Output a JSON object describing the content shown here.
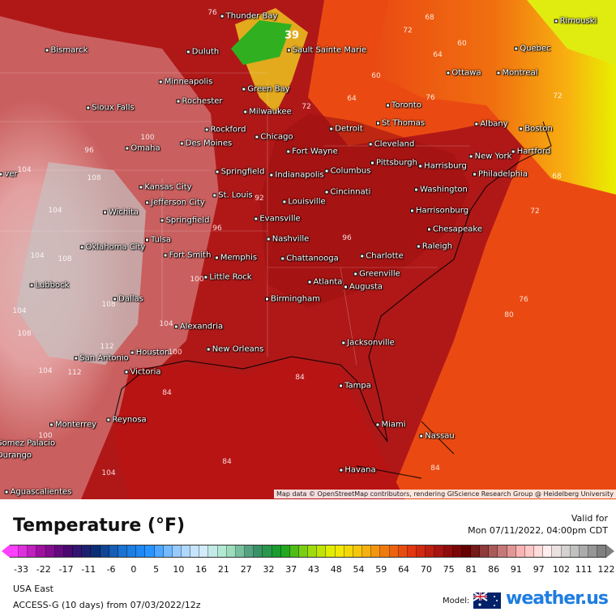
{
  "map": {
    "cities": [
      {
        "name": "Thunder Bay",
        "p": [
          307,
          20
        ]
      },
      {
        "name": "Bismarck",
        "p": [
          82,
          62
        ]
      },
      {
        "name": "Duluth",
        "p": [
          250,
          64
        ]
      },
      {
        "name": "Sault Sainte Marie",
        "p": [
          403,
          62
        ]
      },
      {
        "name": "Rimouski",
        "p": [
          710,
          26
        ]
      },
      {
        "name": "Quebec",
        "p": [
          657,
          60
        ]
      },
      {
        "name": "Ottawa",
        "p": [
          572,
          90
        ]
      },
      {
        "name": "Montreal",
        "p": [
          638,
          90
        ]
      },
      {
        "name": "Minneapolis",
        "p": [
          229,
          101
        ]
      },
      {
        "name": "Green Bay",
        "p": [
          328,
          110
        ]
      },
      {
        "name": "Rochester",
        "p": [
          246,
          125
        ]
      },
      {
        "name": "Toronto",
        "p": [
          498,
          130
        ]
      },
      {
        "name": "Sioux Falls",
        "p": [
          136,
          133
        ]
      },
      {
        "name": "Milwaukee",
        "p": [
          330,
          138
        ]
      },
      {
        "name": "Albany",
        "p": [
          606,
          153
        ]
      },
      {
        "name": "Boston",
        "p": [
          661,
          159
        ]
      },
      {
        "name": "St Thomas",
        "p": [
          494,
          152
        ]
      },
      {
        "name": "Rockford",
        "p": [
          278,
          160
        ]
      },
      {
        "name": "Chicago",
        "p": [
          338,
          169
        ]
      },
      {
        "name": "Detroit",
        "p": [
          427,
          159
        ]
      },
      {
        "name": "Omaha",
        "p": [
          176,
          183
        ]
      },
      {
        "name": "Des Moines",
        "p": [
          254,
          177
        ]
      },
      {
        "name": "Fort Wayne",
        "p": [
          385,
          187
        ]
      },
      {
        "name": "Cleveland",
        "p": [
          483,
          178
        ]
      },
      {
        "name": "Hartford",
        "p": [
          655,
          187
        ]
      },
      {
        "name": "New York",
        "p": [
          605,
          193
        ]
      },
      {
        "name": "Springfield",
        "p": [
          296,
          212
        ]
      },
      {
        "name": "Indianapolis",
        "p": [
          366,
          216
        ]
      },
      {
        "name": "Columbus",
        "p": [
          429,
          211
        ]
      },
      {
        "name": "Pittsburgh",
        "p": [
          486,
          201
        ]
      },
      {
        "name": "Harrisburg",
        "p": [
          546,
          205
        ]
      },
      {
        "name": "Philadelphia",
        "p": [
          617,
          215
        ]
      },
      {
        "name": "Kansas City",
        "p": [
          204,
          231
        ]
      },
      {
        "name": "Jefferson City",
        "p": [
          216,
          250
        ]
      },
      {
        "name": "St. Louis",
        "p": [
          287,
          241
        ]
      },
      {
        "name": "Cincinnati",
        "p": [
          429,
          237
        ]
      },
      {
        "name": "Washington",
        "p": [
          544,
          234
        ]
      },
      {
        "name": "Wichita",
        "p": [
          149,
          262
        ]
      },
      {
        "name": "Springfield",
        "p": [
          228,
          272
        ]
      },
      {
        "name": "Louisville",
        "p": [
          375,
          249
        ]
      },
      {
        "name": "Evansville",
        "p": [
          342,
          270
        ]
      },
      {
        "name": "Harrisonburg",
        "p": [
          542,
          260
        ]
      },
      {
        "name": "Oklahoma City",
        "p": [
          139,
          305
        ]
      },
      {
        "name": "Tulsa",
        "p": [
          195,
          296
        ]
      },
      {
        "name": "Fort Smith",
        "p": [
          231,
          315
        ]
      },
      {
        "name": "Memphis",
        "p": [
          291,
          318
        ]
      },
      {
        "name": "Nashville",
        "p": [
          355,
          295
        ]
      },
      {
        "name": "Chesapeake",
        "p": [
          561,
          283
        ]
      },
      {
        "name": "Raleigh",
        "p": [
          536,
          304
        ]
      },
      {
        "name": "Chattanooga",
        "p": [
          382,
          319
        ]
      },
      {
        "name": "Charlotte",
        "p": [
          471,
          316
        ]
      },
      {
        "name": "Greenville",
        "p": [
          465,
          338
        ]
      },
      {
        "name": "Little Rock",
        "p": [
          281,
          342
        ]
      },
      {
        "name": "Lubbock",
        "p": [
          61,
          352
        ]
      },
      {
        "name": "Atlanta",
        "p": [
          401,
          348
        ]
      },
      {
        "name": "Augusta",
        "p": [
          448,
          354
        ]
      },
      {
        "name": "Birmingham",
        "p": [
          361,
          369
        ]
      },
      {
        "name": "Dallas",
        "p": [
          158,
          369
        ]
      },
      {
        "name": "Alexandria",
        "p": [
          245,
          403
        ]
      },
      {
        "name": "New Orleans",
        "p": [
          290,
          431
        ]
      },
      {
        "name": "Jacksonville",
        "p": [
          454,
          423
        ]
      },
      {
        "name": "San Antonio",
        "p": [
          125,
          442
        ]
      },
      {
        "name": "Houston",
        "p": [
          185,
          435
        ]
      },
      {
        "name": "Victoria",
        "p": [
          176,
          459
        ]
      },
      {
        "name": "Tampa",
        "p": [
          438,
          476
        ]
      },
      {
        "name": "Reynosa",
        "p": [
          156,
          518
        ]
      },
      {
        "name": "Monterrey",
        "p": [
          90,
          524
        ]
      },
      {
        "name": "Miami",
        "p": [
          482,
          524
        ]
      },
      {
        "name": "Nassau",
        "p": [
          539,
          538
        ]
      },
      {
        "name": "Gomez Palacio",
        "p": [
          28,
          547
        ]
      },
      {
        "name": "Durango",
        "p": [
          14,
          562
        ]
      },
      {
        "name": "Havana",
        "p": [
          441,
          580
        ]
      },
      {
        "name": "Aguascalientes",
        "p": [
          47,
          607
        ]
      },
      {
        "name": "ver",
        "p": [
          10,
          215
        ]
      }
    ],
    "contour_labels": [
      {
        "t": "39",
        "p": [
          360,
          44
        ]
      },
      {
        "t": "76",
        "p": [
          262,
          16
        ]
      },
      {
        "t": "68",
        "p": [
          530,
          22
        ]
      },
      {
        "t": "72",
        "p": [
          503,
          38
        ]
      },
      {
        "t": "60",
        "p": [
          570,
          54
        ]
      },
      {
        "t": "64",
        "p": [
          540,
          68
        ]
      },
      {
        "t": "60",
        "p": [
          464,
          94
        ]
      },
      {
        "t": "64",
        "p": [
          434,
          122
        ]
      },
      {
        "t": "72",
        "p": [
          378,
          132
        ]
      },
      {
        "t": "76",
        "p": [
          531,
          121
        ]
      },
      {
        "t": "72",
        "p": [
          688,
          119
        ]
      },
      {
        "t": "68",
        "p": [
          687,
          218
        ]
      },
      {
        "t": "72",
        "p": [
          660,
          261
        ]
      },
      {
        "t": "76",
        "p": [
          646,
          370
        ]
      },
      {
        "t": "80",
        "p": [
          628,
          389
        ]
      },
      {
        "t": "84",
        "p": [
          370,
          466
        ]
      },
      {
        "t": "84",
        "p": [
          206,
          485
        ]
      },
      {
        "t": "84",
        "p": [
          280,
          570
        ]
      },
      {
        "t": "84",
        "p": [
          537,
          578
        ]
      },
      {
        "t": "104",
        "p": [
          30,
          210
        ]
      },
      {
        "t": "108",
        "p": [
          116,
          220
        ]
      },
      {
        "t": "104",
        "p": [
          68,
          260
        ]
      },
      {
        "t": "100",
        "p": [
          182,
          170
        ]
      },
      {
        "t": "96",
        "p": [
          110,
          186
        ]
      },
      {
        "t": "104",
        "p": [
          46,
          316
        ]
      },
      {
        "t": "108",
        "p": [
          80,
          320
        ]
      },
      {
        "t": "104",
        "p": [
          24,
          384
        ]
      },
      {
        "t": "108",
        "p": [
          134,
          376
        ]
      },
      {
        "t": "108",
        "p": [
          30,
          412
        ]
      },
      {
        "t": "112",
        "p": [
          132,
          428
        ]
      },
      {
        "t": "104",
        "p": [
          56,
          458
        ]
      },
      {
        "t": "112",
        "p": [
          92,
          460
        ]
      },
      {
        "t": "100",
        "p": [
          216,
          435
        ]
      },
      {
        "t": "104",
        "p": [
          205,
          400
        ]
      },
      {
        "t": "100",
        "p": [
          243,
          345
        ]
      },
      {
        "t": "104",
        "p": [
          134,
          584
        ]
      },
      {
        "t": "100",
        "p": [
          56,
          538
        ]
      },
      {
        "t": "92",
        "p": [
          320,
          245
        ]
      },
      {
        "t": "96",
        "p": [
          268,
          282
        ]
      },
      {
        "t": "96",
        "p": [
          428,
          294
        ]
      }
    ],
    "attribution": "Map data © OpenStreetMap contributors, rendering GIScience Research Group @ Heidelberg University"
  },
  "legend": {
    "title": "Temperature (°F)",
    "valid_label": "Valid for",
    "valid_time": "Mon 07/11/2022, 04:00pm CDT",
    "ticks": [
      "-33",
      "-22",
      "-17",
      "-11",
      "-6",
      "0",
      "5",
      "10",
      "16",
      "21",
      "27",
      "32",
      "37",
      "43",
      "48",
      "54",
      "59",
      "64",
      "70",
      "75",
      "81",
      "86",
      "91",
      "97",
      "102",
      "111",
      "122"
    ],
    "color_stops": [
      "#ff40ff",
      "#a010a0",
      "#4a0870",
      "#0a2a70",
      "#1a70d0",
      "#2090ff",
      "#90c8ff",
      "#d8ecff",
      "#a8e8c8",
      "#409070",
      "#10a020",
      "#90d810",
      "#f0f000",
      "#f8c010",
      "#f07010",
      "#e03010",
      "#a01010",
      "#600000",
      "#b06060",
      "#ffb8b8",
      "#fff0f0",
      "#c0c0c0",
      "#808080"
    ],
    "region": "USA East",
    "model_run": "ACCESS-G (10 days) from 07/03/2022/12z",
    "model_label": "Model:",
    "brand": "weather.us"
  }
}
